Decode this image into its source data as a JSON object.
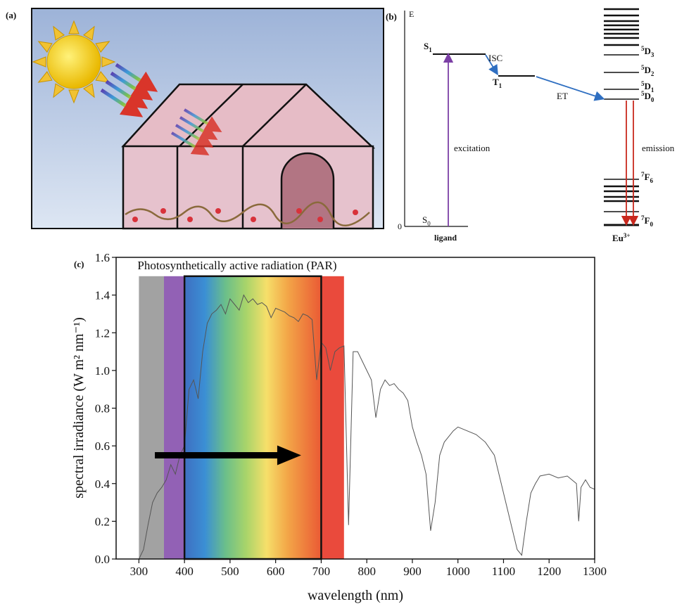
{
  "panel_a": {
    "label": "(a)"
  },
  "panel_b": {
    "label": "(b)",
    "axis_label": "E",
    "origin_label": "0",
    "s1": {
      "base": "S",
      "sub": "1"
    },
    "isc": "ISC",
    "t1": {
      "base": "T",
      "sub": "1"
    },
    "et": "ET",
    "d3": {
      "pre": "5",
      "base": "D",
      "sub": "3"
    },
    "d2": {
      "pre": "5",
      "base": "D",
      "sub": "2"
    },
    "d1": {
      "pre": "5",
      "base": "D",
      "sub": "1"
    },
    "d0": {
      "pre": "5",
      "base": "D",
      "sub": "0"
    },
    "excitation": "excitation",
    "emission": "emission",
    "f6": {
      "pre": "7",
      "base": "F",
      "sub": "6"
    },
    "f0": {
      "pre": "7",
      "base": "F",
      "sub": "0"
    },
    "s0": {
      "base": "S",
      "sub": "0"
    },
    "ligand": "ligand",
    "eu": {
      "base": "Eu",
      "sup": "3+"
    }
  },
  "chart_data": {
    "type": "line",
    "label": "(c)",
    "title": "Photosynthetically active radiation (PAR)",
    "x_label": "wavelength (nm)",
    "y_label": "spectral irradiance (W m² nm⁻¹)",
    "color": "#555555",
    "x": [
      300,
      310,
      320,
      330,
      340,
      350,
      360,
      370,
      380,
      390,
      400,
      410,
      420,
      430,
      440,
      450,
      460,
      470,
      480,
      490,
      500,
      510,
      520,
      530,
      540,
      550,
      560,
      570,
      580,
      590,
      600,
      610,
      620,
      630,
      640,
      650,
      660,
      670,
      680,
      690,
      700,
      710,
      720,
      730,
      740,
      750,
      760,
      770,
      780,
      790,
      800,
      810,
      820,
      830,
      840,
      850,
      860,
      870,
      880,
      890,
      900,
      910,
      920,
      930,
      940,
      950,
      960,
      970,
      980,
      990,
      1000,
      1020,
      1040,
      1060,
      1080,
      1100,
      1120,
      1130,
      1140,
      1150,
      1160,
      1170,
      1180,
      1200,
      1220,
      1240,
      1260,
      1265,
      1270,
      1280,
      1290,
      1300
    ],
    "values": [
      0,
      0.05,
      0.18,
      0.3,
      0.35,
      0.38,
      0.42,
      0.5,
      0.45,
      0.55,
      0.6,
      0.9,
      0.95,
      0.85,
      1.1,
      1.25,
      1.3,
      1.32,
      1.35,
      1.3,
      1.38,
      1.35,
      1.32,
      1.4,
      1.36,
      1.38,
      1.35,
      1.36,
      1.34,
      1.28,
      1.33,
      1.32,
      1.31,
      1.29,
      1.28,
      1.26,
      1.3,
      1.29,
      1.27,
      0.95,
      1.15,
      1.12,
      1.0,
      1.1,
      1.12,
      1.13,
      0.18,
      1.1,
      1.1,
      1.05,
      1.0,
      0.95,
      0.75,
      0.9,
      0.95,
      0.92,
      0.93,
      0.9,
      0.88,
      0.84,
      0.7,
      0.62,
      0.55,
      0.45,
      0.15,
      0.3,
      0.55,
      0.62,
      0.65,
      0.68,
      0.7,
      0.68,
      0.66,
      0.62,
      0.55,
      0.35,
      0.15,
      0.05,
      0.02,
      0.2,
      0.35,
      0.4,
      0.44,
      0.45,
      0.43,
      0.44,
      0.4,
      0.2,
      0.38,
      0.42,
      0.38,
      0.37
    ],
    "xlim": [
      250,
      1300
    ],
    "ylim": [
      0,
      1.6
    ],
    "xticks": [
      300,
      400,
      500,
      600,
      700,
      800,
      900,
      1000,
      1100,
      1200,
      1300
    ],
    "yticks": [
      {
        "value": 0,
        "label": "0.0"
      },
      0.2,
      0.4,
      0.6,
      0.8,
      {
        "value": 1,
        "label": "1.0"
      },
      1.2,
      1.4,
      1.6
    ],
    "regions": [
      {
        "from": 300,
        "to": 355,
        "color": "#a2a2a2"
      },
      {
        "from": 355,
        "to": 400,
        "color": "#9261b5"
      },
      {
        "from": 400,
        "to": 700,
        "color": "url(#rainbow)"
      },
      {
        "from": 700,
        "to": 750,
        "color": "#ea4a3c"
      }
    ],
    "region_top": 1.5,
    "par_box": {
      "from": 400,
      "to": 700
    },
    "arrow": {
      "from": 335,
      "to": 656,
      "y": 0.55
    }
  }
}
